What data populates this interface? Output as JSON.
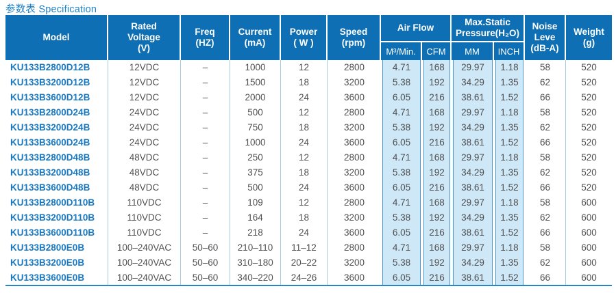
{
  "page": {
    "title": "参数表 Specification"
  },
  "colors": {
    "header_bg": "#0e6fb4",
    "header_text": "#ffffff",
    "highlight_cell_bg": "#cee8f8",
    "highlight_cell_border": "#4a97cd",
    "model_link_text": "#1878c2",
    "body_text": "#4f4f4f",
    "column_separator": "#a8c9e0",
    "table_bottom_border": "#2b84c4",
    "title_text": "#1f80c6"
  },
  "table": {
    "columns": [
      {
        "key": "model",
        "label": "Model"
      },
      {
        "key": "rated_voltage",
        "label": "Rated\nVoltage\n(V)"
      },
      {
        "key": "freq",
        "label": "Freq\n(HZ)"
      },
      {
        "key": "current",
        "label": "Current\n(mA)"
      },
      {
        "key": "power",
        "label": "Power\n( W )"
      },
      {
        "key": "speed",
        "label": "Speed\n(rpm)"
      },
      {
        "key": "air_flow",
        "label": "Air Flow",
        "children": [
          {
            "key": "m3_min",
            "label": "M³/Min."
          },
          {
            "key": "cfm",
            "label": "CFM"
          }
        ]
      },
      {
        "key": "max_static_pressure",
        "label": "Max.Static\nPressure(H₂O)",
        "children": [
          {
            "key": "mm",
            "label": "MM"
          },
          {
            "key": "inch",
            "label": "INCH"
          }
        ]
      },
      {
        "key": "noise_level",
        "label": "Noise\nLeve\n(dB-A)"
      },
      {
        "key": "weight",
        "label": "Weight\n(g)"
      }
    ],
    "rows": [
      [
        "KU133B2800D12B",
        "12VDC",
        "–",
        "1000",
        "12",
        "2800",
        "4.71",
        "168",
        "29.97",
        "1.18",
        "58",
        "520"
      ],
      [
        "KU133B3200D12B",
        "12VDC",
        "–",
        "1500",
        "18",
        "3200",
        "5.38",
        "192",
        "34.29",
        "1.35",
        "62",
        "520"
      ],
      [
        "KU133B3600D12B",
        "12VDC",
        "–",
        "2000",
        "24",
        "3600",
        "6.05",
        "216",
        "38.61",
        "1.52",
        "66",
        "520"
      ],
      [
        "KU133B2800D24B",
        "24VDC",
        "–",
        "500",
        "12",
        "2800",
        "4.71",
        "168",
        "29.97",
        "1.18",
        "58",
        "520"
      ],
      [
        "KU133B3200D24B",
        "24VDC",
        "–",
        "750",
        "18",
        "3200",
        "5.38",
        "192",
        "34.29",
        "1.35",
        "62",
        "520"
      ],
      [
        "KU133B3600D24B",
        "24VDC",
        "–",
        "1000",
        "24",
        "3600",
        "6.05",
        "216",
        "38.61",
        "1.52",
        "66",
        "520"
      ],
      [
        "KU133B2800D48B",
        "48VDC",
        "–",
        "250",
        "12",
        "2800",
        "4.71",
        "168",
        "29.97",
        "1.18",
        "58",
        "520"
      ],
      [
        "KU133B3200D48B",
        "48VDC",
        "–",
        "375",
        "18",
        "3200",
        "5.38",
        "192",
        "34.29",
        "1.35",
        "62",
        "520"
      ],
      [
        "KU133B3600D48B",
        "48VDC",
        "–",
        "500",
        "24",
        "3600",
        "6.05",
        "216",
        "38.61",
        "1.52",
        "66",
        "520"
      ],
      [
        "KU133B2800D110B",
        "110VDC",
        "–",
        "109",
        "12",
        "2800",
        "4.71",
        "168",
        "29.97",
        "1.18",
        "58",
        "600"
      ],
      [
        "KU133B3200D110B",
        "110VDC",
        "–",
        "164",
        "18",
        "3200",
        "5.38",
        "192",
        "34.29",
        "1.35",
        "62",
        "600"
      ],
      [
        "KU133B3600D110B",
        "110VDC",
        "–",
        "218",
        "24",
        "3600",
        "6.05",
        "216",
        "38.61",
        "1.52",
        "66",
        "600"
      ],
      [
        "KU133B2800E0B",
        "100–240VAC",
        "50–60",
        "210–110",
        "11–12",
        "2800",
        "4.71",
        "168",
        "29.97",
        "1.18",
        "58",
        "600"
      ],
      [
        "KU133B3200E0B",
        "100–240VAC",
        "50–60",
        "310–180",
        "20–22",
        "3200",
        "5.38",
        "192",
        "34.29",
        "1.35",
        "62",
        "600"
      ],
      [
        "KU133B3600E0B",
        "100–240VAC",
        "50–60",
        "340–220",
        "24–26",
        "3600",
        "6.05",
        "216",
        "38.61",
        "1.52",
        "66",
        "600"
      ]
    ]
  }
}
